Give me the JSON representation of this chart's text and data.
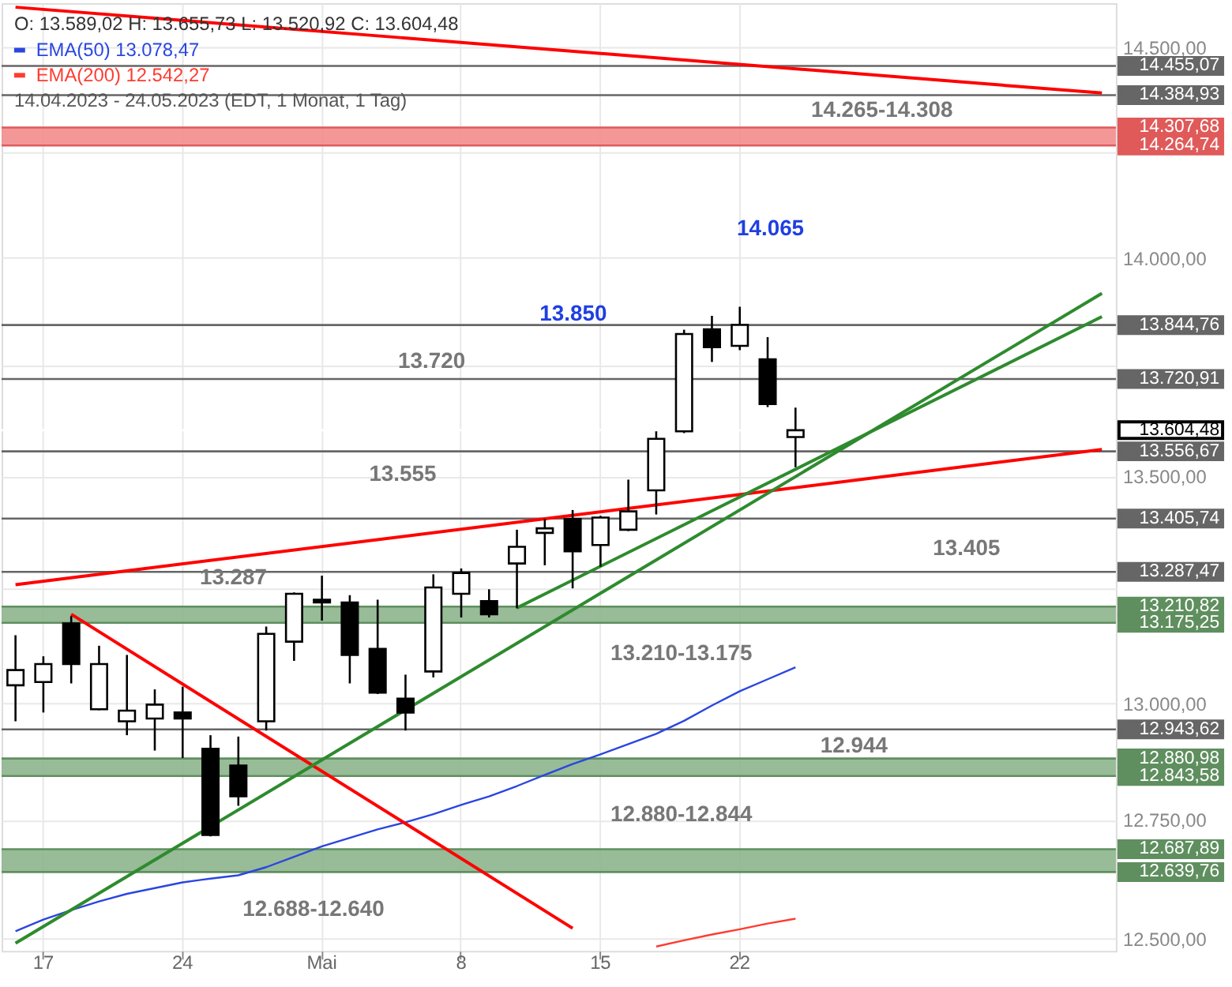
{
  "chart_data": {
    "type": "candlestick",
    "title": "O: 13.589,02  H: 13.655,73  L: 13.520,92  C: 13.604,48",
    "subtitle": "14.04.2023 - 24.05.2023  (EDT, 1 Monat, 1 Tag)",
    "categories": [
      null,
      "17",
      null,
      null,
      null,
      null,
      "24",
      null,
      null,
      null,
      null,
      "Mai",
      null,
      null,
      null,
      null,
      "8",
      null,
      null,
      null,
      null,
      "15",
      null,
      null,
      null,
      null,
      "22",
      null,
      null,
      null,
      null,
      null,
      null,
      null,
      null,
      null,
      null,
      null,
      null,
      null
    ],
    "ohlc": [
      [
        13039,
        13148,
        12961,
        13072
      ],
      [
        13046,
        13102,
        12980,
        13085
      ],
      [
        13174,
        13190,
        13043,
        13085
      ],
      [
        12987,
        13125,
        12985,
        13085
      ],
      [
        12961,
        13105,
        12931,
        12984
      ],
      [
        12967,
        13030,
        12898,
        12997
      ],
      [
        12980,
        13036,
        12882,
        12967
      ],
      [
        12902,
        12931,
        12715,
        12718
      ],
      [
        12866,
        12928,
        12780,
        12800
      ],
      [
        12961,
        13167,
        12941,
        13151
      ],
      [
        13134,
        13242,
        13092,
        13239
      ],
      [
        13226,
        13279,
        13180,
        13220
      ],
      [
        13220,
        13236,
        13043,
        13105
      ],
      [
        13118,
        13226,
        13020,
        13023
      ],
      [
        13010,
        13062,
        12941,
        12980
      ],
      [
        13069,
        13282,
        13056,
        13253
      ],
      [
        13239,
        13295,
        13187,
        13285
      ],
      [
        13223,
        13249,
        13187,
        13194
      ],
      [
        13306,
        13381,
        13207,
        13343
      ],
      [
        13374,
        13405,
        13302,
        13384
      ],
      [
        13405,
        13425,
        13251,
        13333
      ],
      [
        13347,
        13412,
        13299,
        13408
      ],
      [
        13381,
        13493,
        13378,
        13422
      ],
      [
        13469,
        13602,
        13415,
        13585
      ],
      [
        13602,
        13834,
        13598,
        13824
      ],
      [
        13835,
        13866,
        13760,
        13794
      ],
      [
        13797,
        13887,
        13787,
        13845
      ],
      [
        13766,
        13817,
        13657,
        13664
      ],
      [
        13589.02,
        13655.73,
        13520.92,
        13604.48
      ],
      null,
      null,
      null,
      null,
      null,
      null,
      null,
      null,
      null,
      null,
      null
    ],
    "series": [
      {
        "type": "line",
        "name": "EMA(50)  13.078,47",
        "color": "#2a46e0",
        "values": [
          12516,
          12540,
          12560,
          12578,
          12594,
          12606,
          12618,
          12626,
          12633,
          12650,
          12672,
          12694,
          12712,
          12730,
          12745,
          12762,
          12782,
          12800,
          12822,
          12846,
          12869,
          12890,
          12912,
          12934,
          12962,
          12995,
          13026,
          13052,
          13078,
          null,
          null,
          null,
          null,
          null,
          null,
          null,
          null,
          null,
          null,
          null
        ]
      },
      {
        "type": "line",
        "name": "EMA(200)  12.542,27",
        "color": "#ff3b30",
        "values": [
          null,
          null,
          null,
          null,
          null,
          null,
          null,
          null,
          null,
          null,
          null,
          null,
          null,
          null,
          null,
          null,
          null,
          null,
          null,
          null,
          null,
          null,
          null,
          12484,
          12497,
          12509,
          12520,
          12532,
          12542,
          null,
          null,
          null,
          null,
          null,
          null,
          null,
          null,
          null,
          null,
          null
        ]
      },
      {
        "type": "line",
        "color": "#ff0000",
        "values": [
          14597,
          null,
          null,
          null,
          null,
          null,
          null,
          null,
          null,
          null,
          null,
          null,
          null,
          null,
          null,
          null,
          null,
          null,
          null,
          null,
          null,
          null,
          null,
          null,
          null,
          null,
          null,
          null,
          null,
          null,
          null,
          null,
          null,
          null,
          null,
          null,
          null,
          null,
          null,
          14390
        ]
      },
      {
        "type": "line",
        "color": "#ff0000",
        "values": [
          13259,
          null,
          null,
          null,
          null,
          null,
          null,
          null,
          null,
          null,
          null,
          null,
          null,
          null,
          null,
          null,
          null,
          null,
          null,
          null,
          null,
          null,
          null,
          null,
          null,
          null,
          null,
          null,
          null,
          null,
          null,
          null,
          null,
          null,
          null,
          null,
          null,
          null,
          null,
          13561
        ]
      },
      {
        "type": "line",
        "color": "#ff0000",
        "values": [
          null,
          null,
          13194,
          null,
          null,
          null,
          null,
          null,
          null,
          null,
          null,
          null,
          null,
          null,
          null,
          null,
          null,
          null,
          null,
          null,
          12522,
          null,
          null,
          null,
          null,
          null,
          null,
          null,
          null,
          null,
          null,
          null,
          null,
          null,
          null,
          null,
          null,
          null,
          null,
          null
        ]
      },
      {
        "type": "line",
        "color": "#2e8b2e",
        "values": [
          12491,
          null,
          null,
          null,
          null,
          null,
          null,
          null,
          null,
          null,
          null,
          null,
          null,
          null,
          null,
          null,
          null,
          null,
          null,
          null,
          null,
          null,
          null,
          null,
          null,
          null,
          null,
          null,
          null,
          null,
          null,
          null,
          null,
          null,
          null,
          null,
          null,
          null,
          null,
          13918
        ]
      },
      {
        "type": "line",
        "color": "#2e8b2e",
        "values": [
          null,
          null,
          null,
          null,
          null,
          null,
          null,
          null,
          null,
          null,
          null,
          null,
          null,
          null,
          null,
          null,
          null,
          null,
          13208,
          null,
          null,
          null,
          null,
          null,
          null,
          null,
          null,
          null,
          null,
          null,
          null,
          null,
          null,
          null,
          null,
          null,
          null,
          null,
          null,
          13864
        ]
      }
    ],
    "ylim": [
      12475,
      14607
    ],
    "log": true,
    "yticks": [
      {
        "value": 12500,
        "label": "12.500,00"
      },
      {
        "value": 12750,
        "label": "12.750,00"
      },
      {
        "value": 13000,
        "label": "13.000,00"
      },
      {
        "value": 13250,
        "label": null
      },
      {
        "value": 13500,
        "label": "13.500,00"
      },
      {
        "value": 13750,
        "label": null
      },
      {
        "value": 14000,
        "label": "14.000,00"
      },
      {
        "value": 14250,
        "label": null
      },
      {
        "value": 14500,
        "label": "14.500,00"
      }
    ],
    "grid": true,
    "legend": "top left",
    "line_style": "solid",
    "bands": [
      {
        "axis": "y",
        "from": 14264.74,
        "to": 14307.68,
        "label": "14.265-14.308",
        "color": "#f28c8c"
      },
      {
        "axis": "y",
        "from": 13175.25,
        "to": 13210.82,
        "label": "13.210-13.175",
        "color": "#8db48d"
      },
      {
        "axis": "y",
        "from": 12843.58,
        "to": 12880.98,
        "label": "12.880-12.844",
        "color": "#8db48d"
      },
      {
        "axis": "y",
        "from": 12639.76,
        "to": 12687.89,
        "label": "12.688-12.640",
        "color": "#8db48d"
      }
    ],
    "ref_lines": [
      {
        "axis": "y",
        "value": 14455.07,
        "label": "14.455,07",
        "color": "#666666"
      },
      {
        "axis": "y",
        "value": 14384.93,
        "label": "14.384,93",
        "color": "#666666"
      },
      {
        "axis": "y",
        "value": 14307.68,
        "label": "14.307,68",
        "color": "#e05a5a"
      },
      {
        "axis": "y",
        "value": 14264.74,
        "label": "14.264,74",
        "color": "#e05a5a"
      },
      {
        "axis": "y",
        "value": 13844.76,
        "label": "13.844,76",
        "color": "#666666"
      },
      {
        "axis": "y",
        "value": 13720.91,
        "label": "13.720,91",
        "color": "#666666"
      },
      {
        "axis": "y",
        "value": 13604.48,
        "label": "13.604,48",
        "color": "#ffffff"
      },
      {
        "axis": "y",
        "value": 13556.67,
        "label": "13.556,67",
        "color": "#666666"
      },
      {
        "axis": "y",
        "value": 13405.74,
        "label": "13.405,74",
        "color": "#666666"
      },
      {
        "axis": "y",
        "value": 13287.47,
        "label": "13.287,47",
        "color": "#666666"
      },
      {
        "axis": "y",
        "value": 13210.82,
        "label": "13.210,82",
        "color": "#5f8f5f"
      },
      {
        "axis": "y",
        "value": 13175.25,
        "label": "13.175,25",
        "color": "#5f8f5f"
      },
      {
        "axis": "y",
        "value": 12943.62,
        "label": "12.943,62",
        "color": "#666666"
      },
      {
        "axis": "y",
        "value": 12880.98,
        "label": "12.880,98",
        "color": "#5f8f5f"
      },
      {
        "axis": "y",
        "value": 12843.58,
        "label": "12.843,58",
        "color": "#5f8f5f"
      },
      {
        "axis": "y",
        "value": 12687.89,
        "label": "12.687,89",
        "color": "#5f8f5f"
      },
      {
        "axis": "y",
        "value": 12639.76,
        "label": "12.639,76",
        "color": "#5f8f5f"
      }
    ],
    "annotations": [
      "13.850",
      "14.065",
      {
        "text": "13.720",
        "y": 13720.91
      },
      {
        "text": "13.555",
        "y": 13556.67
      },
      {
        "text": "13.287",
        "y": 13287.47
      },
      {
        "text": "13.405",
        "y": 13405.74
      },
      {
        "text": "12.944",
        "y": 12943.62
      }
    ]
  }
}
